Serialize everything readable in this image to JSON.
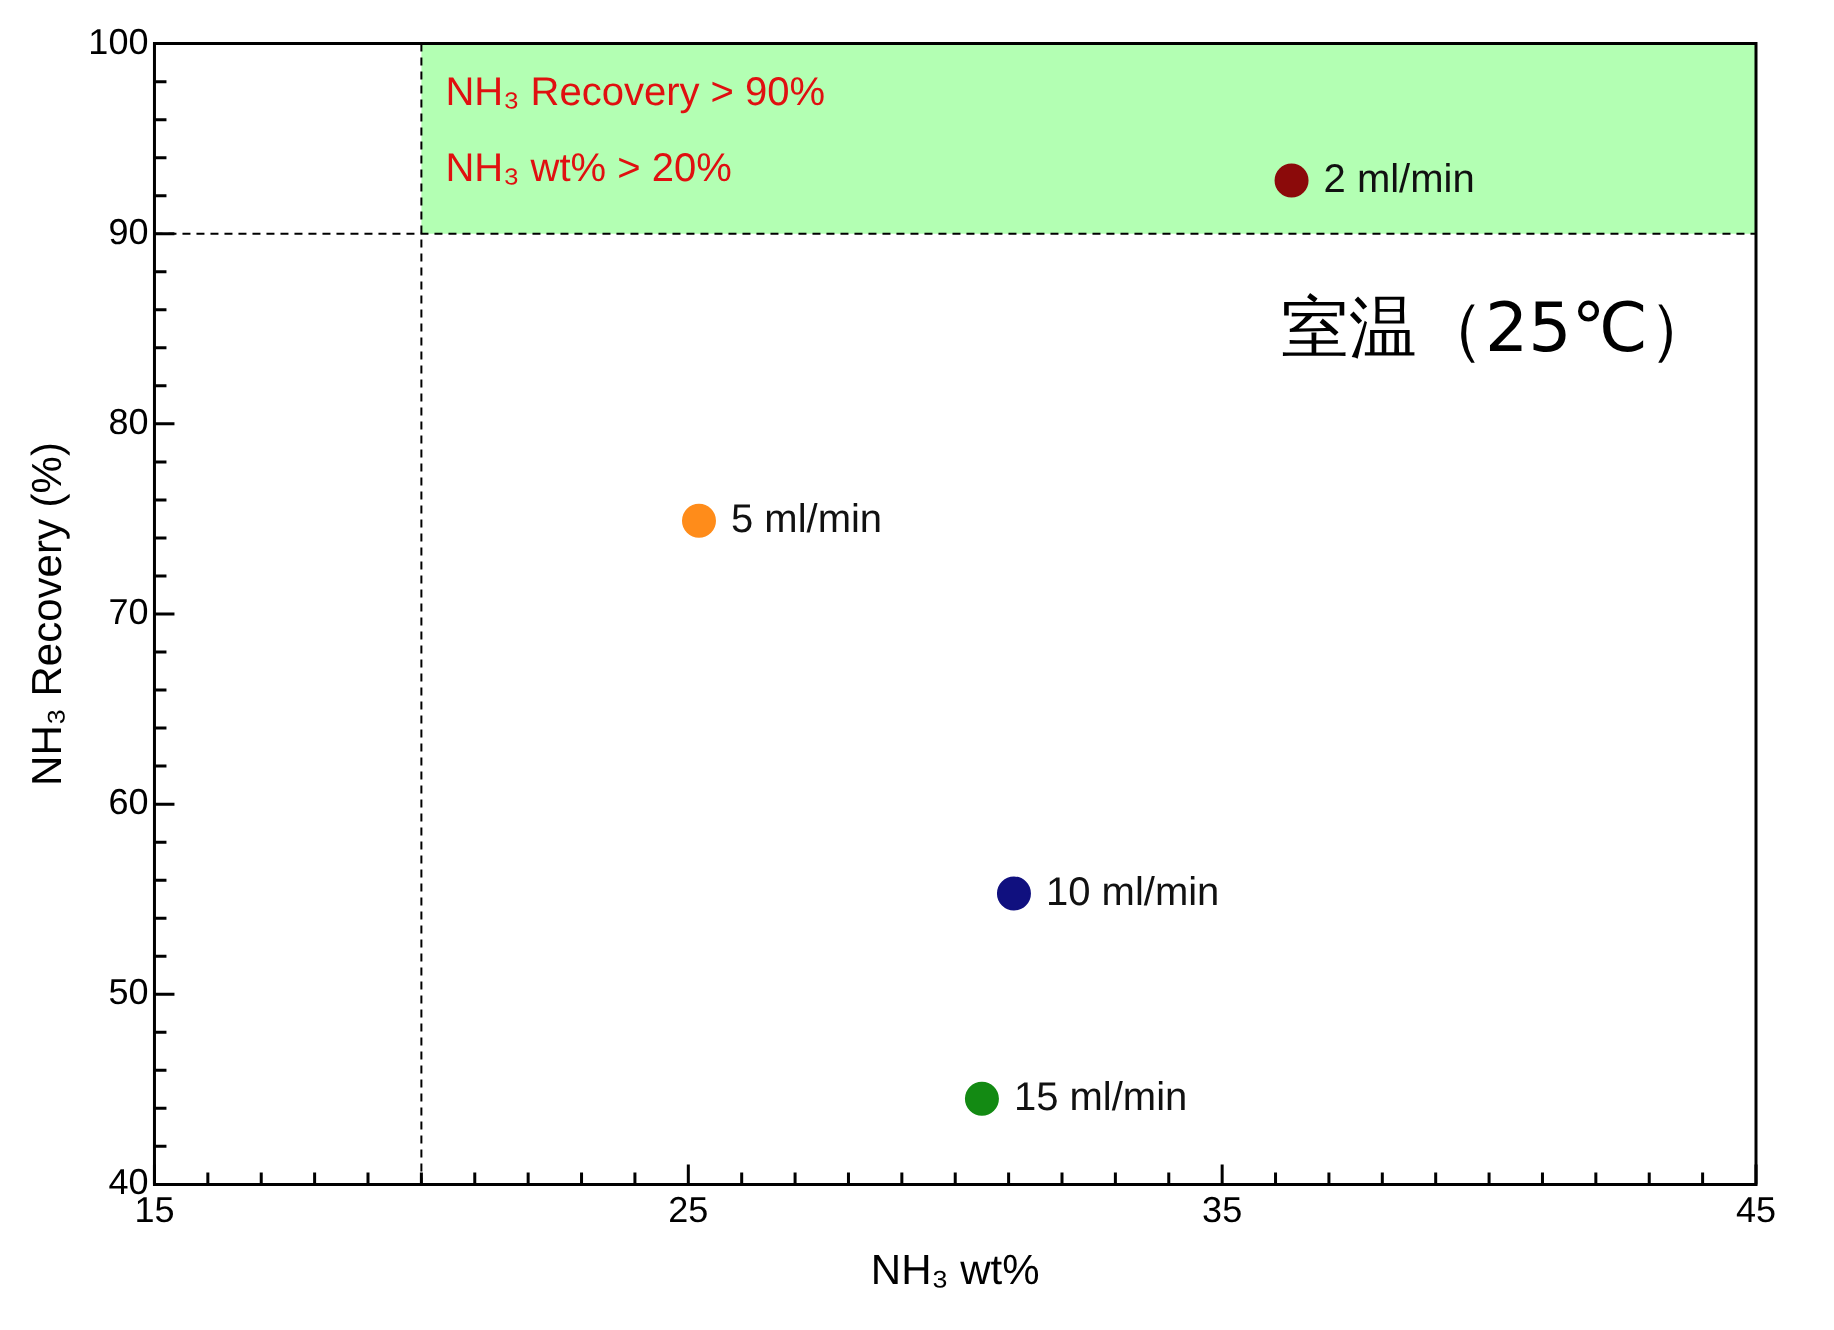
{
  "chart_data": {
    "type": "scatter",
    "xlabel": "NH₃ wt%",
    "ylabel": "NH₃ Recovery (%)",
    "xlim": [
      15,
      45
    ],
    "ylim": [
      40,
      100
    ],
    "xticks": [
      15,
      {
        "value": 16,
        "label": null
      },
      {
        "value": 17,
        "label": null
      },
      {
        "value": 18,
        "label": null
      },
      {
        "value": 19,
        "label": null
      },
      {
        "value": 20,
        "label": null
      },
      {
        "value": 21,
        "label": null
      },
      {
        "value": 22,
        "label": null
      },
      {
        "value": 23,
        "label": null
      },
      {
        "value": 24,
        "label": null
      },
      25,
      {
        "value": 26,
        "label": null
      },
      {
        "value": 27,
        "label": null
      },
      {
        "value": 28,
        "label": null
      },
      {
        "value": 29,
        "label": null
      },
      {
        "value": 30,
        "label": null
      },
      {
        "value": 31,
        "label": null
      },
      {
        "value": 32,
        "label": null
      },
      {
        "value": 33,
        "label": null
      },
      {
        "value": 34,
        "label": null
      },
      35,
      {
        "value": 36,
        "label": null
      },
      {
        "value": 37,
        "label": null
      },
      {
        "value": 38,
        "label": null
      },
      {
        "value": 39,
        "label": null
      },
      {
        "value": 40,
        "label": null
      },
      {
        "value": 41,
        "label": null
      },
      {
        "value": 42,
        "label": null
      },
      {
        "value": 43,
        "label": null
      },
      {
        "value": 44,
        "label": null
      },
      45
    ],
    "yticks": [
      40,
      {
        "value": 42,
        "label": null
      },
      {
        "value": 44,
        "label": null
      },
      {
        "value": 46,
        "label": null
      },
      {
        "value": 48,
        "label": null
      },
      50,
      {
        "value": 52,
        "label": null
      },
      {
        "value": 54,
        "label": null
      },
      {
        "value": 56,
        "label": null
      },
      {
        "value": 58,
        "label": null
      },
      60,
      {
        "value": 62,
        "label": null
      },
      {
        "value": 64,
        "label": null
      },
      {
        "value": 66,
        "label": null
      },
      {
        "value": 68,
        "label": null
      },
      70,
      {
        "value": 72,
        "label": null
      },
      {
        "value": 74,
        "label": null
      },
      {
        "value": 76,
        "label": null
      },
      {
        "value": 78,
        "label": null
      },
      80,
      {
        "value": 82,
        "label": null
      },
      {
        "value": 84,
        "label": null
      },
      {
        "value": 86,
        "label": null
      },
      {
        "value": 88,
        "label": null
      },
      90,
      {
        "value": 92,
        "label": null
      },
      {
        "value": 94,
        "label": null
      },
      {
        "value": 96,
        "label": null
      },
      {
        "value": 98,
        "label": null
      },
      100
    ],
    "marker": "circle",
    "legend": false,
    "series": [
      {
        "name": "2 ml/min",
        "color": "#8b0a0a",
        "x": [
          36.3
        ],
        "values": [
          92.8
        ]
      },
      {
        "name": "5 ml/min",
        "color": "#ff8c1a",
        "x": [
          25.2
        ],
        "values": [
          74.9
        ]
      },
      {
        "name": "10 ml/min",
        "color": "#10107f",
        "x": [
          31.1
        ],
        "values": [
          55.3
        ]
      },
      {
        "name": "15 ml/min",
        "color": "#138a13",
        "x": [
          30.5
        ],
        "values": [
          44.5
        ]
      }
    ],
    "bands": [
      {
        "axis": "y",
        "from": 90,
        "to": 100,
        "label": "NH₃ Recovery > 90%",
        "color": "#b3ffb3"
      }
    ],
    "ref_lines": [
      {
        "axis": "y",
        "value": 90,
        "line_style": "dashed"
      },
      {
        "axis": "x",
        "value": 20,
        "line_style": "dashed",
        "label": "NH₃ wt% > 20%"
      }
    ],
    "annotations": [
      "室温（25℃）"
    ]
  }
}
